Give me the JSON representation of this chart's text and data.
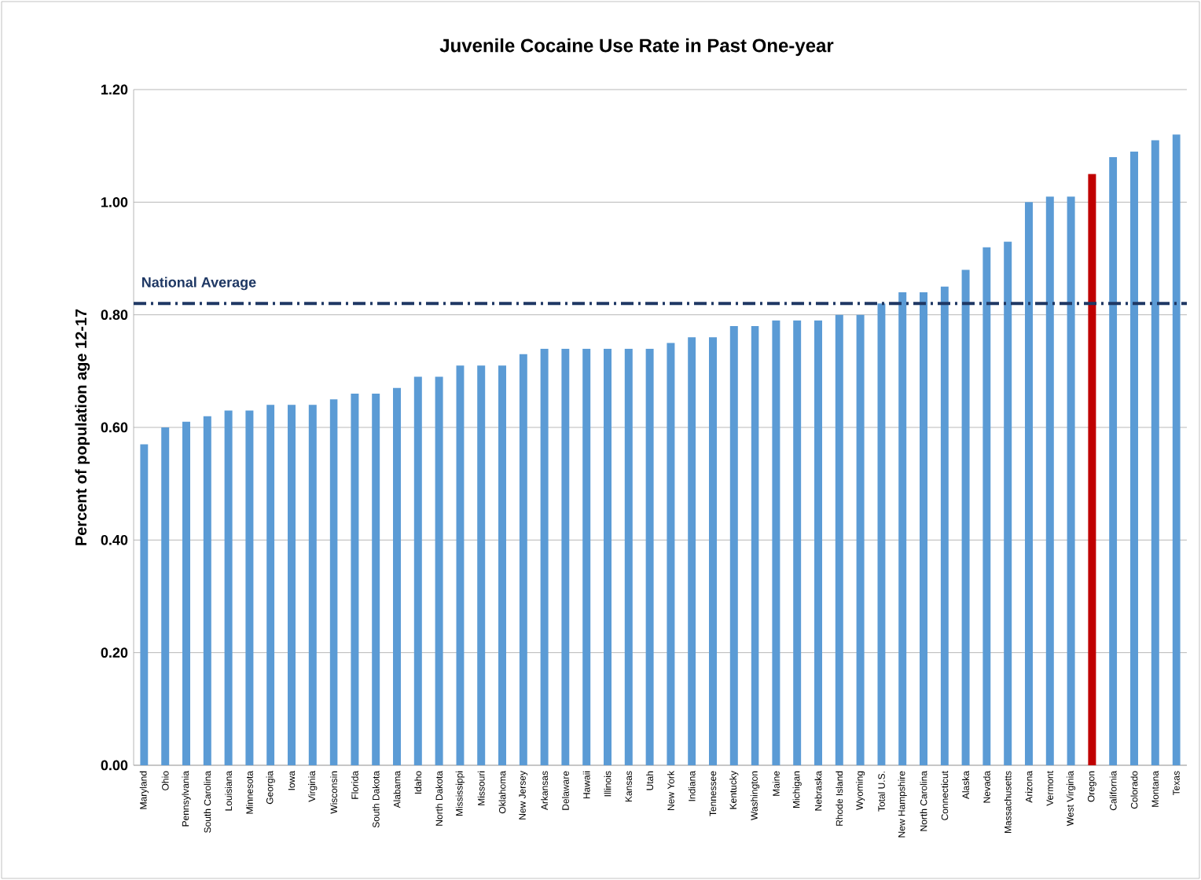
{
  "chart_data": {
    "type": "bar",
    "title": "Juvenile Cocaine Use Rate in Past One-year",
    "ylabel": "Percent of population age 12-17",
    "categories": [
      "Maryland",
      "Ohio",
      "Pennsylvania",
      "South Carolina",
      "Louisiana",
      "Minnesota",
      "Georgia",
      "Iowa",
      "Virginia",
      "Wisconsin",
      "Florida",
      "South Dakota",
      "Alabama",
      "Idaho",
      "North Dakota",
      "Mississippi",
      "Missouri",
      "Oklahoma",
      "New Jersey",
      "Arkansas",
      "Delaware",
      "Hawaii",
      "Illinois",
      "Kansas",
      "Utah",
      "New York",
      "Indiana",
      "Tennessee",
      "Kentucky",
      "Washington",
      "Maine",
      "Michigan",
      "Nebraska",
      "Rhode Island",
      "Wyoming",
      "Total U.S.",
      "New Hampshire",
      "North Carolina",
      "Connecticut",
      "Alaska",
      "Nevada",
      "Massachusetts",
      "Arizona",
      "Vermont",
      "West Virginia",
      "Oregon",
      "California",
      "Colorado",
      "Montana",
      "Texas"
    ],
    "values": [
      0.57,
      0.6,
      0.61,
      0.62,
      0.63,
      0.63,
      0.64,
      0.64,
      0.64,
      0.65,
      0.66,
      0.66,
      0.67,
      0.69,
      0.69,
      0.71,
      0.71,
      0.71,
      0.73,
      0.74,
      0.74,
      0.74,
      0.74,
      0.74,
      0.74,
      0.75,
      0.76,
      0.76,
      0.78,
      0.78,
      0.79,
      0.79,
      0.79,
      0.8,
      0.8,
      0.82,
      0.84,
      0.84,
      0.85,
      0.88,
      0.92,
      0.93,
      1.0,
      1.01,
      1.01,
      1.05,
      1.08,
      1.09,
      1.11,
      1.12
    ],
    "colors": [
      "#5b9bd5",
      "#5b9bd5",
      "#5b9bd5",
      "#5b9bd5",
      "#5b9bd5",
      "#5b9bd5",
      "#5b9bd5",
      "#5b9bd5",
      "#5b9bd5",
      "#5b9bd5",
      "#5b9bd5",
      "#5b9bd5",
      "#5b9bd5",
      "#5b9bd5",
      "#5b9bd5",
      "#5b9bd5",
      "#5b9bd5",
      "#5b9bd5",
      "#5b9bd5",
      "#5b9bd5",
      "#5b9bd5",
      "#5b9bd5",
      "#5b9bd5",
      "#5b9bd5",
      "#5b9bd5",
      "#5b9bd5",
      "#5b9bd5",
      "#5b9bd5",
      "#5b9bd5",
      "#5b9bd5",
      "#5b9bd5",
      "#5b9bd5",
      "#5b9bd5",
      "#5b9bd5",
      "#5b9bd5",
      "#5b9bd5",
      "#5b9bd5",
      "#5b9bd5",
      "#5b9bd5",
      "#5b9bd5",
      "#5b9bd5",
      "#5b9bd5",
      "#5b9bd5",
      "#5b9bd5",
      "#5b9bd5",
      "#c00000",
      "#5b9bd5",
      "#5b9bd5",
      "#5b9bd5",
      "#5b9bd5"
    ],
    "ylim": [
      0,
      1.2
    ],
    "yticks": [
      {
        "value": 0,
        "label": "0.00"
      },
      {
        "value": 0.2,
        "label": "0.20"
      },
      {
        "value": 0.4,
        "label": "0.40"
      },
      {
        "value": 0.6,
        "label": "0.60"
      },
      {
        "value": 0.8,
        "label": "0.80"
      },
      {
        "value": 1.0,
        "label": "1.00"
      },
      {
        "value": 1.2,
        "label": "1.20"
      }
    ],
    "grid": "y",
    "ref_lines": [
      {
        "axis": "y",
        "value": 0.82,
        "label": "National Average",
        "color": "#1f3864",
        "line_style": "dashdot"
      }
    ]
  }
}
